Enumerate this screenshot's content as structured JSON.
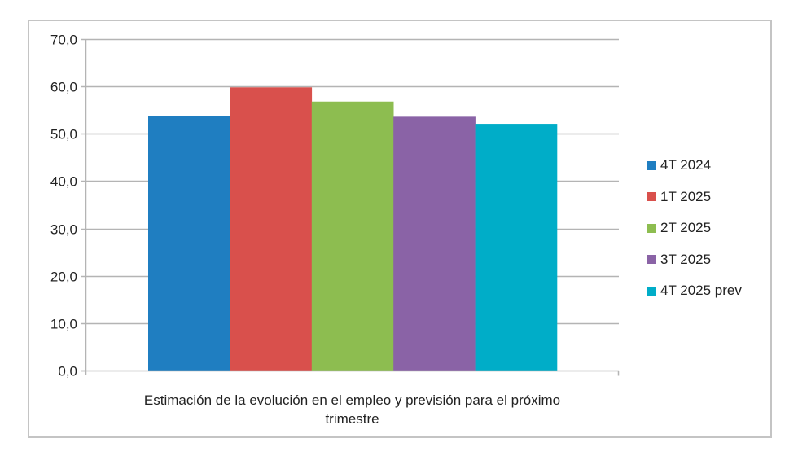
{
  "chart_data": {
    "type": "bar",
    "title": "",
    "categories": [
      "Estimación de la evolución en el empleo y previsión para el próximo trimestre"
    ],
    "series": [
      {
        "name": "4T 2024",
        "values": [
          53.8
        ],
        "color": "#1F7EC1"
      },
      {
        "name": "1T 2025",
        "values": [
          59.8
        ],
        "color": "#D9504C"
      },
      {
        "name": "2T 2025",
        "values": [
          56.8
        ],
        "color": "#8DBD50"
      },
      {
        "name": "3T 2025",
        "values": [
          53.6
        ],
        "color": "#8A63A6"
      },
      {
        "name": "4T 2025 prev",
        "values": [
          52.1
        ],
        "color": "#00ADC8"
      }
    ],
    "xlabel": "",
    "ylabel": "",
    "ylim": [
      0,
      70
    ],
    "yticks": [
      0,
      10,
      20,
      30,
      40,
      50,
      60,
      70
    ],
    "ytick_labels": [
      "0,0",
      "10,0",
      "20,0",
      "30,0",
      "40,0",
      "50,0",
      "60,0",
      "70,0"
    ],
    "grid": true,
    "legend_position": "right"
  },
  "category_label": {
    "line1": "Estimación de la evolución en el empleo y previsión para el próximo",
    "line2": "trimestre"
  },
  "legend": {
    "items": [
      {
        "label": "4T 2024",
        "color": "#1F7EC1"
      },
      {
        "label": "1T 2025",
        "color": "#D9504C"
      },
      {
        "label": "2T 2025",
        "color": "#8DBD50"
      },
      {
        "label": "3T 2025",
        "color": "#8A63A6"
      },
      {
        "label": "4T 2025 prev",
        "color": "#00ADC8"
      }
    ]
  },
  "colors": {
    "gridline": "#b4b4b4",
    "axis": "#b4b4b4",
    "frame": "#c4c4c4"
  }
}
